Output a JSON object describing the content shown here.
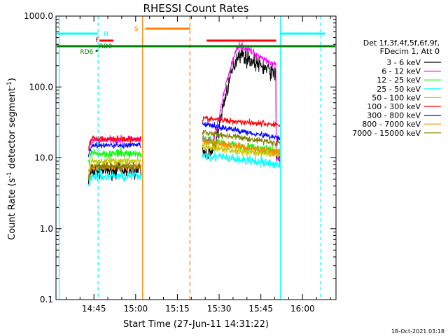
{
  "chart_data": {
    "type": "line",
    "title": "RHESSI Count Rates",
    "xlabel": "Start Time (27-Jun-11 14:31:22)",
    "ylabel_main": "Count Rate (s",
    "ylabel_sup1": "-1",
    "ylabel_mid": " detector segment",
    "ylabel_sup2": "-1",
    "ylabel_end": ")",
    "y_scale": "log",
    "ylim": [
      0.1,
      1000.0
    ],
    "xlim": [
      "14:31:22",
      "16:12:00"
    ],
    "x_ticks": [
      {
        "t": "14:45",
        "label": "14:45"
      },
      {
        "t": "15:00",
        "label": "15:00"
      },
      {
        "t": "15:15",
        "label": "15:15"
      },
      {
        "t": "15:30",
        "label": "15:30"
      },
      {
        "t": "15:45",
        "label": "15:45"
      },
      {
        "t": "16:00",
        "label": "16:00"
      }
    ],
    "y_ticks": [
      {
        "v": 1000.0,
        "label": "1000.0"
      },
      {
        "v": 100.0,
        "label": "100.0"
      },
      {
        "v": 10.0,
        "label": "10.0"
      },
      {
        "v": 1.0,
        "label": "1.0"
      },
      {
        "v": 0.1,
        "label": "0.1"
      }
    ],
    "timestamp": "18-Oct-2021 03:18",
    "legend_header": [
      "Det 1f,3f,4f,5f,6f,9f,",
      "FDecim 1, Att 0"
    ],
    "series": [
      {
        "name": "3 - 6 keV",
        "color": "#000000",
        "base": 6.5,
        "jitter": 0.13,
        "flare_amp": 300,
        "post": 10.5
      },
      {
        "name": "6 - 12 keV",
        "color": "#ff00ff",
        "base": 18.0,
        "jitter": 0.06,
        "flare_amp": 400,
        "post": 9.5
      },
      {
        "name": "12 - 25 keV",
        "color": "#00ff00",
        "base": 11.5,
        "jitter": 0.07,
        "flare_amp": 1,
        "post": 1
      },
      {
        "name": "25 - 50 keV",
        "color": "#00ffff",
        "base": 5.5,
        "jitter": 0.08,
        "flare_amp": 1,
        "post": 1
      },
      {
        "name": "50 - 100 keV",
        "color": "#c8c800",
        "base": 9.0,
        "jitter": 0.06,
        "flare_amp": 1,
        "post": 1
      },
      {
        "name": "100 - 300 keV",
        "color": "#ff0000",
        "base": 18.5,
        "jitter": 0.05,
        "flare_amp": 1,
        "post": 1
      },
      {
        "name": "300 - 800 keV",
        "color": "#0000ff",
        "base": 15.0,
        "jitter": 0.05,
        "flare_amp": 1,
        "post": 1
      },
      {
        "name": "800 - 7000 keV",
        "color": "#ff8c00",
        "base": 7.5,
        "jitter": 0.06,
        "flare_amp": 1,
        "post": 1
      },
      {
        "name": "7000 - 15000 keV",
        "color": "#808000",
        "base": 7.5,
        "jitter": 0.05,
        "flare_amp": 1,
        "post": 1
      }
    ],
    "second_interval": {
      "start_levels": [
        12,
        18,
        18,
        11,
        14,
        36,
        30,
        17,
        23
      ],
      "end_levels": [
        9,
        10,
        12,
        8,
        11,
        29,
        19,
        12,
        16
      ]
    },
    "annotations": [
      {
        "label": "N",
        "color": "#00ffff"
      },
      {
        "label": "F",
        "color": "#ff0000"
      },
      {
        "label": "RD0",
        "color": "#008000"
      },
      {
        "label": "RD6",
        "color": "#008000"
      },
      {
        "label": "S",
        "color": "#ff8000"
      }
    ]
  }
}
